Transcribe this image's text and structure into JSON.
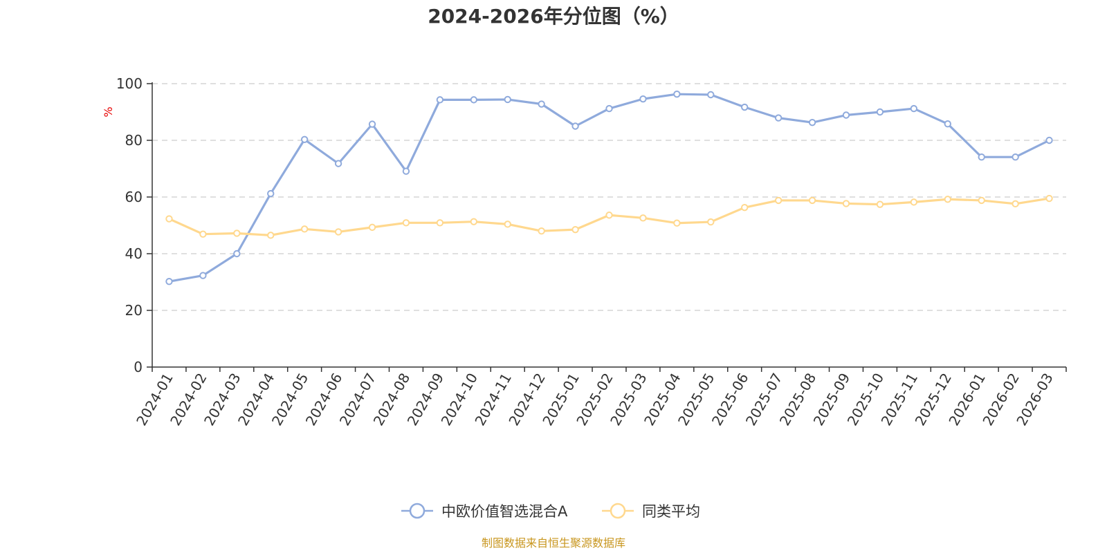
{
  "chart_data": {
    "type": "line",
    "title": "2024-2026年分位图（%）",
    "ylabel": "%",
    "xlabel": "",
    "ylim": [
      0,
      100
    ],
    "yticks": [
      "0",
      "20",
      "40",
      "60",
      "80",
      "100"
    ],
    "grid": true,
    "legend_position": "bottom-center",
    "categories": [
      "2024-01",
      "2024-02",
      "2024-03",
      "2024-04",
      "2024-05",
      "2024-06",
      "2024-07",
      "2024-08",
      "2024-09",
      "2024-10",
      "2024-11",
      "2024-12",
      "2025-01",
      "2025-02",
      "2025-03",
      "2025-04",
      "2025-05",
      "2025-06",
      "2025-07",
      "2025-08",
      "2025-09",
      "2025-10",
      "2025-11",
      "2025-12",
      "2026-01",
      "2026-02",
      "2026-03"
    ],
    "series": [
      {
        "name": "中欧价值智选混合A",
        "color": "#8faadc",
        "values": [
          30.2,
          32.3,
          40.0,
          61.2,
          80.3,
          71.8,
          85.7,
          69.1,
          94.3,
          94.3,
          94.4,
          92.8,
          85.0,
          91.2,
          94.6,
          96.3,
          96.1,
          91.7,
          87.9,
          86.3,
          88.9,
          90.0,
          91.2,
          85.8,
          74.1,
          74.1,
          80.0
        ]
      },
      {
        "name": "同类平均",
        "color": "#ffd88e",
        "values": [
          52.3,
          46.9,
          47.2,
          46.5,
          48.7,
          47.7,
          49.3,
          50.9,
          50.9,
          51.3,
          50.4,
          48.0,
          48.5,
          53.6,
          52.6,
          50.8,
          51.2,
          56.3,
          58.8,
          58.8,
          57.7,
          57.4,
          58.2,
          59.2,
          58.8,
          57.6,
          59.5
        ]
      }
    ],
    "source_note": "制图数据来自恒生聚源数据库"
  }
}
